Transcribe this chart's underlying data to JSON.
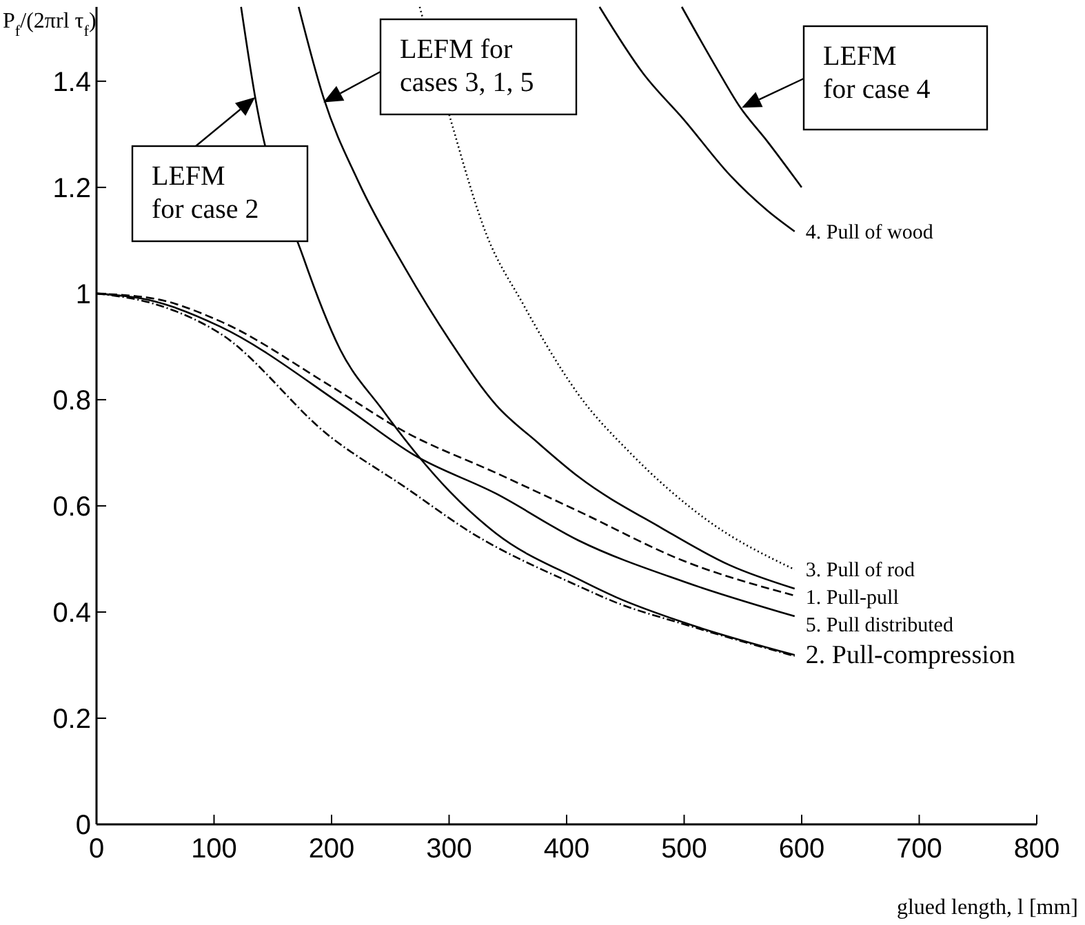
{
  "chart_data": {
    "type": "line",
    "ylabel": "P$_{f}$/(2πrl τ$_{f}$)",
    "xlabel": "glued length, l [mm]",
    "xlim": [
      0,
      800
    ],
    "xticks": [
      0,
      100,
      200,
      300,
      400,
      500,
      600,
      700,
      800
    ],
    "ylim": [
      0,
      1.54
    ],
    "yticks": [
      0,
      0.2,
      0.4,
      0.6,
      0.8,
      1,
      1.2,
      1.4
    ],
    "grid": false,
    "series": [
      {
        "name": "3. Pull of rod",
        "color": "#000000",
        "line_style": "dotted",
        "x": [
          275,
          301,
          332,
          363,
          382,
          410,
          454,
          519,
          594
        ],
        "values": [
          1.54,
          1.33,
          1.11,
          0.98,
          0.906,
          0.81,
          0.7,
          0.574,
          0.48
        ]
      },
      {
        "color": "#000000",
        "line_style": "solid",
        "x": [
          172,
          193,
          223,
          262,
          301,
          340,
          375,
          410,
          481,
          539,
          594
        ],
        "values": [
          1.54,
          1.37,
          1.21,
          1.05,
          0.91,
          0.79,
          0.72,
          0.655,
          0.558,
          0.488,
          0.444
        ]
      },
      {
        "name": "1. Pull-pull",
        "color": "#000000",
        "line_style": "dashed",
        "x": [
          0,
          50,
          105,
          199,
          262,
          340,
          410,
          500,
          594
        ],
        "values": [
          1.0,
          0.99,
          0.948,
          0.826,
          0.74,
          0.662,
          0.59,
          0.496,
          0.431
        ]
      },
      {
        "name": "5. Pull distributed",
        "color": "#000000",
        "line_style": "solid",
        "x": [
          0,
          50,
          105,
          211,
          270,
          340,
          410,
          500,
          594
        ],
        "values": [
          1.0,
          0.985,
          0.938,
          0.787,
          0.696,
          0.623,
          0.535,
          0.457,
          0.392
        ]
      },
      {
        "name": "2. Pull-compression",
        "color": "#000000",
        "line_style": "dashdot",
        "x": [
          0,
          50,
          105,
          199,
          262,
          320,
          410,
          442,
          500,
          594
        ],
        "values": [
          1.0,
          0.98,
          0.925,
          0.73,
          0.636,
          0.548,
          0.449,
          0.418,
          0.377,
          0.317
        ]
      },
      {
        "color": "#000000",
        "line_style": "solid",
        "x": [
          123,
          135,
          176,
          207,
          243,
          273,
          301,
          340,
          410,
          442,
          500,
          594
        ],
        "values": [
          1.54,
          1.37,
          1.068,
          0.896,
          0.782,
          0.696,
          0.626,
          0.548,
          0.462,
          0.428,
          0.38,
          0.319
        ]
      },
      {
        "name": "4. Pull of wood",
        "color": "#000000",
        "line_style": "solid",
        "x": [
          428,
          465,
          500,
          539,
          571,
          594
        ],
        "values": [
          1.54,
          1.415,
          1.327,
          1.223,
          1.156,
          1.117
        ]
      },
      {
        "color": "#000000",
        "line_style": "solid",
        "x": [
          498,
          528,
          547,
          571,
          600
        ],
        "values": [
          1.54,
          1.423,
          1.353,
          1.286,
          1.2
        ]
      }
    ],
    "annotations": [
      {
        "text": "LEFM\nfor case 2",
        "x": 135,
        "y": 1.37
      },
      {
        "text": "LEFM for\ncases 3, 1, 5",
        "x": 193,
        "y": 1.36
      },
      {
        "text": "LEFM\nfor case 4",
        "x": 549,
        "y": 1.35
      }
    ]
  }
}
